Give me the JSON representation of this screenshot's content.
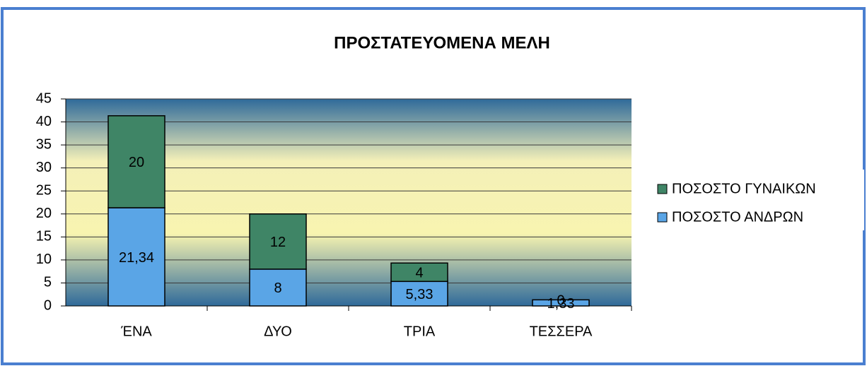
{
  "chart_data": {
    "type": "stacked_bar",
    "title": "ΠΡΟΣΤΑΤΕΥΟΜΕΝΑ ΜΕΛΗ",
    "categories": [
      "ΈΝΑ",
      "ΔΥΟ",
      "ΤΡΙΑ",
      "ΤΕΣΣΕΡΑ"
    ],
    "series": [
      {
        "name": "ΠΟΣΟΣΤΟ ΑΝΔΡΩΝ",
        "color": "#5aa5e6",
        "values": [
          21.34,
          8,
          5.33,
          1.33
        ],
        "value_labels": [
          "21,34",
          "8",
          "5,33",
          "1,33"
        ]
      },
      {
        "name": "ΠΟΣΟΣΤΟ ΓΥΝΑΙΚΩΝ",
        "color": "#3f8566",
        "values": [
          20,
          12,
          4,
          0
        ]
      }
    ],
    "ylim": [
      0,
      45
    ],
    "yticks": [
      0,
      5,
      10,
      15,
      20,
      25,
      30,
      35,
      40,
      45
    ],
    "grid": true,
    "legend": "right"
  }
}
